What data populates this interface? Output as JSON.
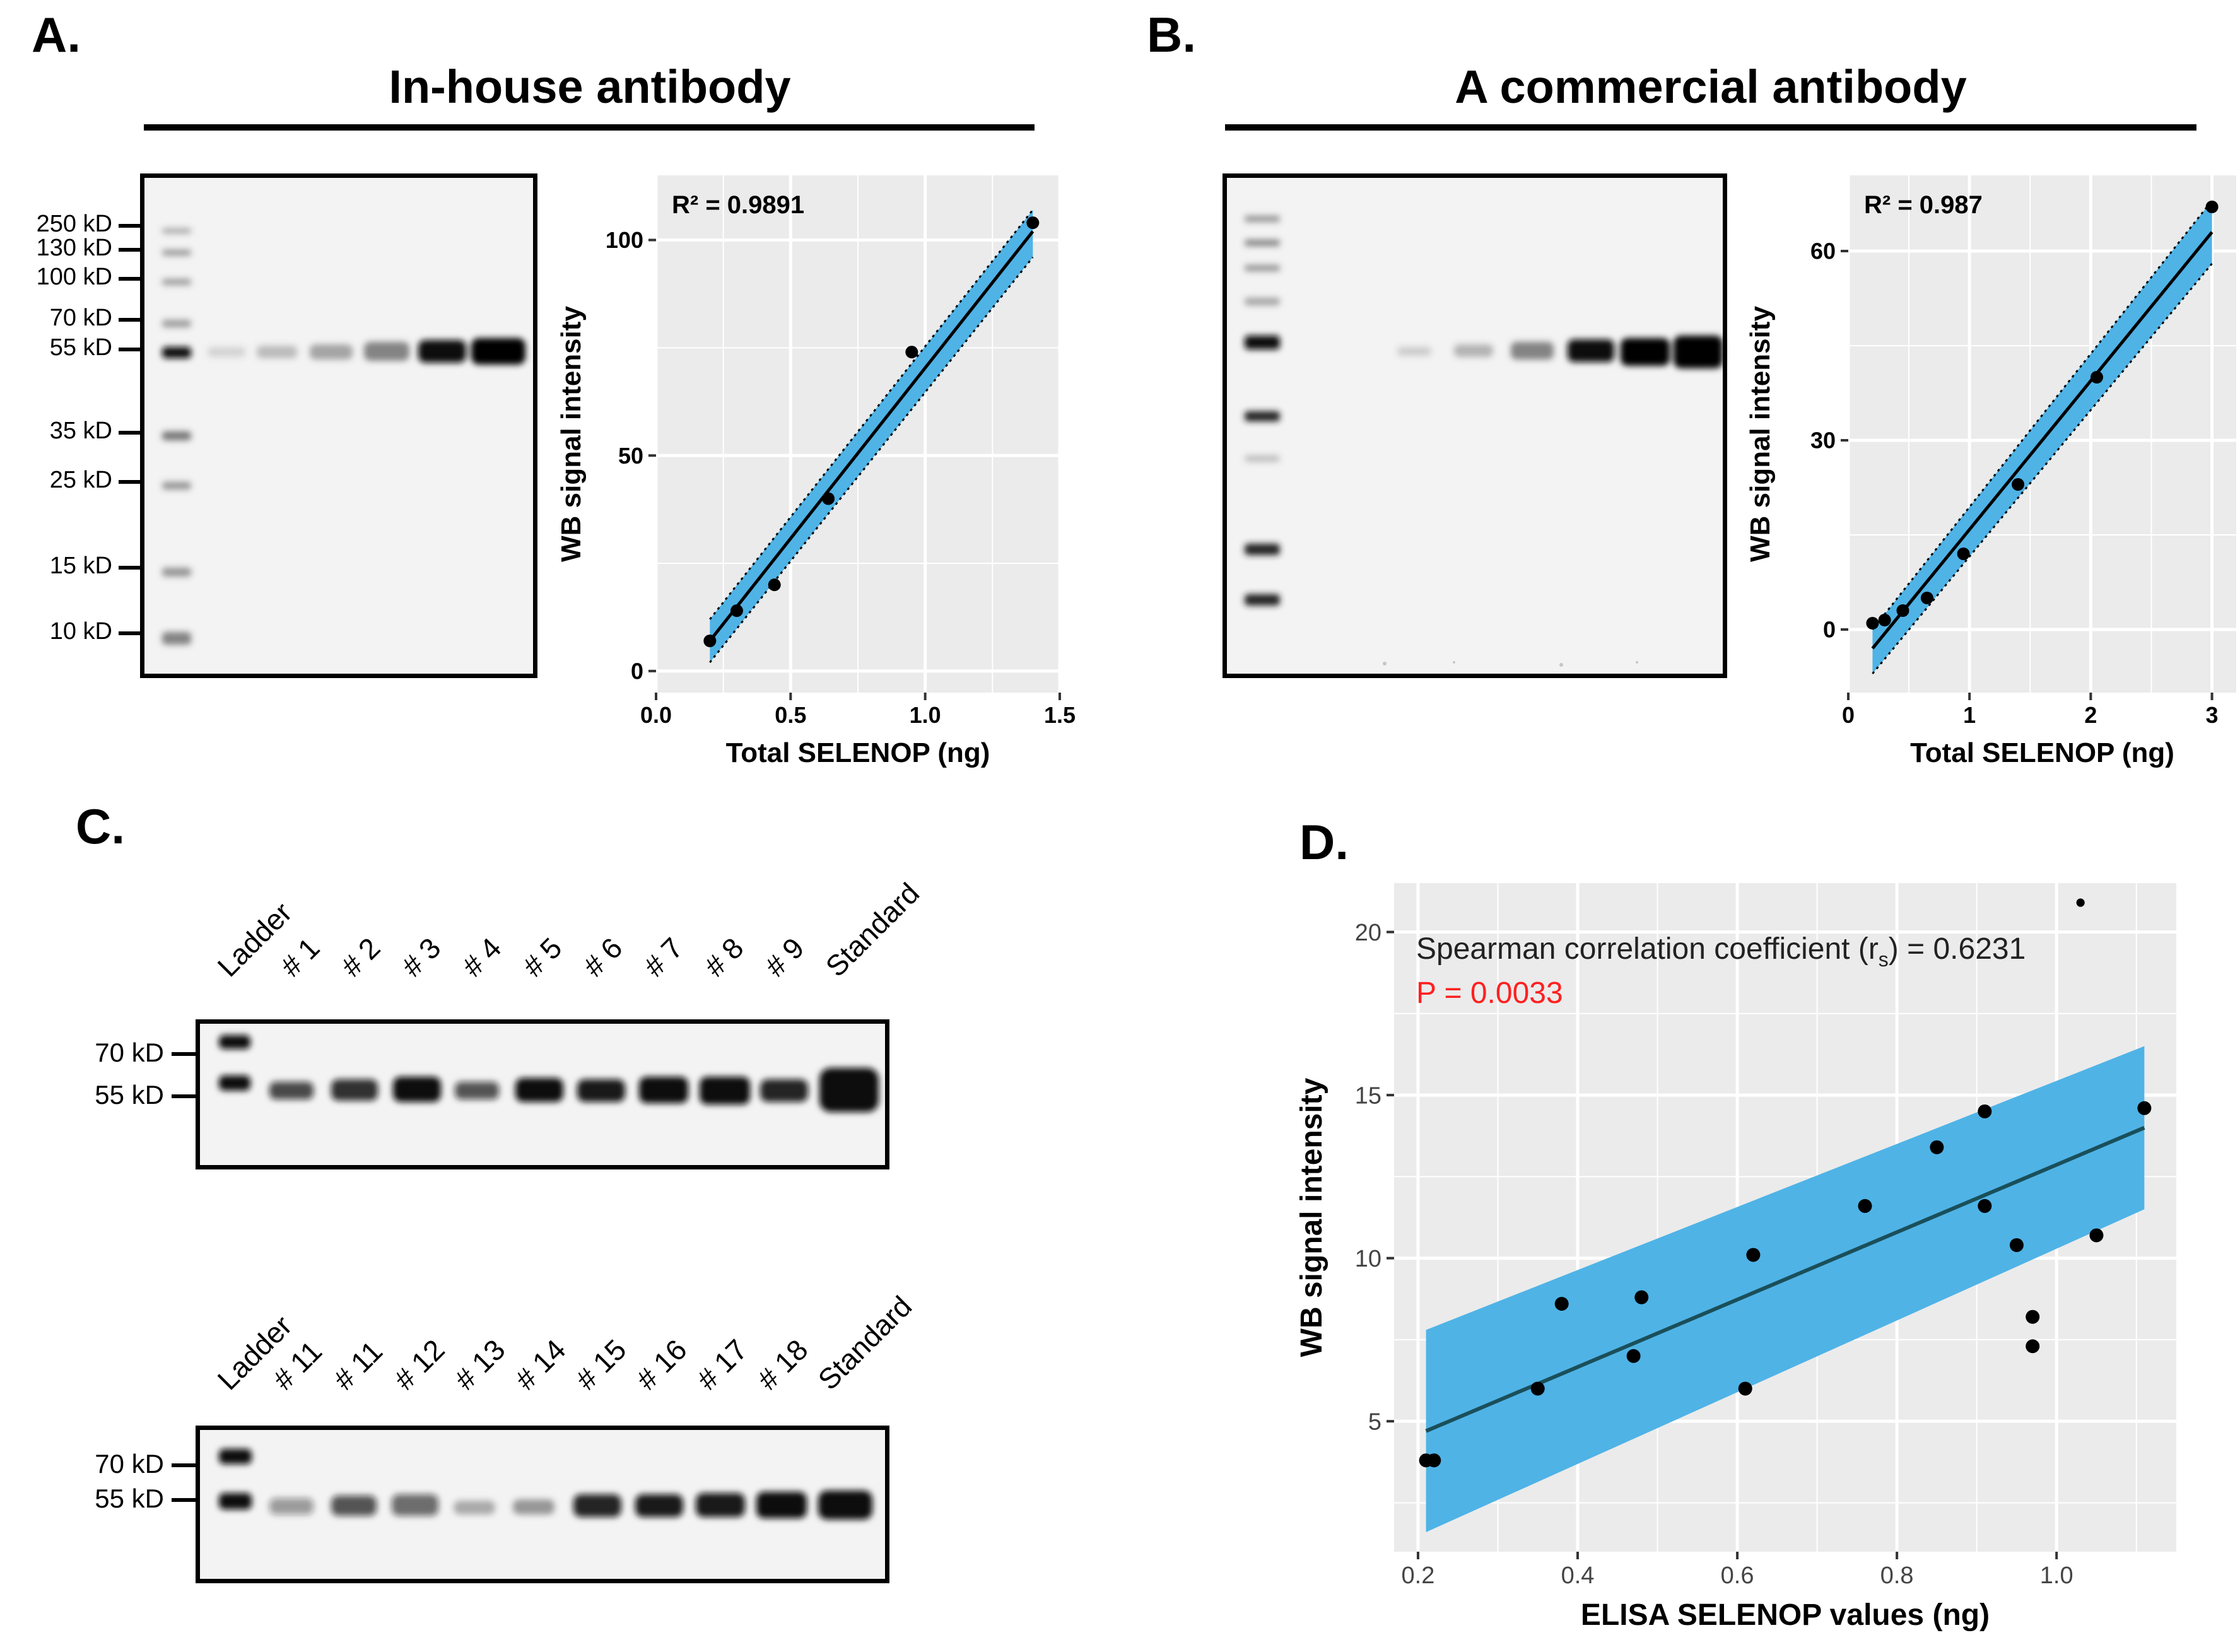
{
  "panels": {
    "a": {
      "label": "A.",
      "title": "In-house antibody"
    },
    "b": {
      "label": "B.",
      "title": "A commercial antibody"
    },
    "c": {
      "label": "C."
    },
    "d": {
      "label": "D."
    }
  },
  "blot_a": {
    "ladder": [
      "250 kD",
      "130 kD",
      "100 kD",
      "70 kD",
      "55 kD",
      "35 kD",
      "25 kD",
      "15 kD",
      "10 kD"
    ]
  },
  "blot_c": {
    "top_lanes": [
      "Ladder",
      "# 1",
      "# 2",
      "# 3",
      "# 4",
      "# 5",
      "# 6",
      "# 7",
      "# 8",
      "# 9",
      "Standard"
    ],
    "bottom_lanes": [
      "Ladder",
      "# 11",
      "# 11",
      "# 12",
      "# 13",
      "# 14",
      "# 15",
      "# 16",
      "# 17",
      "# 18",
      "Standard"
    ],
    "markers": [
      "70 kD",
      "55 kD"
    ]
  },
  "colors": {
    "ci_fill": "#4fb3e6",
    "panel_bg": "#ebebeb",
    "grid": "#ffffff",
    "p_value": "#ff2020",
    "fit_d": "#1a4f5a"
  },
  "chart_data": [
    {
      "id": "A",
      "type": "scatter",
      "title": "",
      "annotation": "R² = 0.9891",
      "xlabel": "Total SELENOP (ng)",
      "ylabel": "WB signal intensity",
      "xlim": [
        0.0,
        1.5
      ],
      "ylim": [
        -5,
        115
      ],
      "xticks": [
        0.0,
        0.5,
        1.0,
        1.5
      ],
      "xtick_labels": [
        "0.0",
        "0.5",
        "1.0",
        "1.5"
      ],
      "yticks": [
        0,
        50,
        100
      ],
      "ytick_labels": [
        "0",
        "50",
        "100"
      ],
      "x": [
        0.2,
        0.3,
        0.44,
        0.64,
        0.95,
        1.4
      ],
      "y": [
        7,
        14,
        20,
        40,
        74,
        104
      ],
      "fit": {
        "x": [
          0.2,
          1.4
        ],
        "y": [
          7,
          102
        ]
      },
      "ci_upper": [
        12,
        107
      ],
      "ci_lower": [
        2,
        96
      ]
    },
    {
      "id": "B",
      "type": "scatter",
      "annotation": "R² = 0.987",
      "xlabel": "Total SELENOP (ng)",
      "ylabel": "WB signal intensity",
      "xlim": [
        0,
        3.2
      ],
      "ylim": [
        -10,
        72
      ],
      "xticks": [
        0,
        1,
        2,
        3
      ],
      "xtick_labels": [
        "0",
        "1",
        "2",
        "3"
      ],
      "yticks": [
        0,
        30,
        60
      ],
      "ytick_labels": [
        "0",
        "30",
        "60"
      ],
      "x": [
        0.2,
        0.3,
        0.45,
        0.65,
        0.95,
        1.4,
        2.05,
        3.0
      ],
      "y": [
        1,
        1.5,
        3,
        5,
        12,
        23,
        40,
        67
      ],
      "fit": {
        "x": [
          0.2,
          3.0
        ],
        "y": [
          -3,
          63
        ]
      },
      "ci_upper": [
        0,
        68
      ],
      "ci_lower": [
        -7,
        58
      ]
    },
    {
      "id": "D",
      "type": "scatter",
      "annotation": "Spearman correlation coefficient (r",
      "annotation_sub": "s",
      "annotation_tail": ") = 0.6231",
      "p_value": "P = 0.0033",
      "xlabel": "ELISA SELENOP values (ng)",
      "ylabel": "WB signal intensity",
      "xlim": [
        0.17,
        1.15
      ],
      "ylim": [
        1.0,
        21.5
      ],
      "xticks": [
        0.2,
        0.4,
        0.6,
        0.8,
        1.0
      ],
      "xtick_labels": [
        "0.2",
        "0.4",
        "0.6",
        "0.8",
        "1.0"
      ],
      "yticks": [
        5,
        10,
        15,
        20
      ],
      "ytick_labels": [
        "5",
        "10",
        "15",
        "20"
      ],
      "x": [
        0.21,
        0.22,
        0.35,
        0.38,
        0.47,
        0.48,
        0.61,
        0.62,
        0.76,
        0.85,
        0.91,
        0.91,
        0.95,
        0.97,
        0.97,
        1.05,
        1.11,
        1.03
      ],
      "y": [
        3.8,
        3.8,
        6.0,
        8.6,
        7.0,
        8.8,
        6.0,
        10.1,
        11.6,
        13.4,
        14.5,
        11.6,
        10.4,
        8.2,
        7.3,
        10.7,
        14.6,
        20.9
      ],
      "fit": {
        "x": [
          0.21,
          1.11
        ],
        "y": [
          4.7,
          14.0
        ]
      },
      "ci_upper": [
        7.8,
        16.5
      ],
      "ci_lower": [
        1.6,
        11.5
      ]
    }
  ]
}
